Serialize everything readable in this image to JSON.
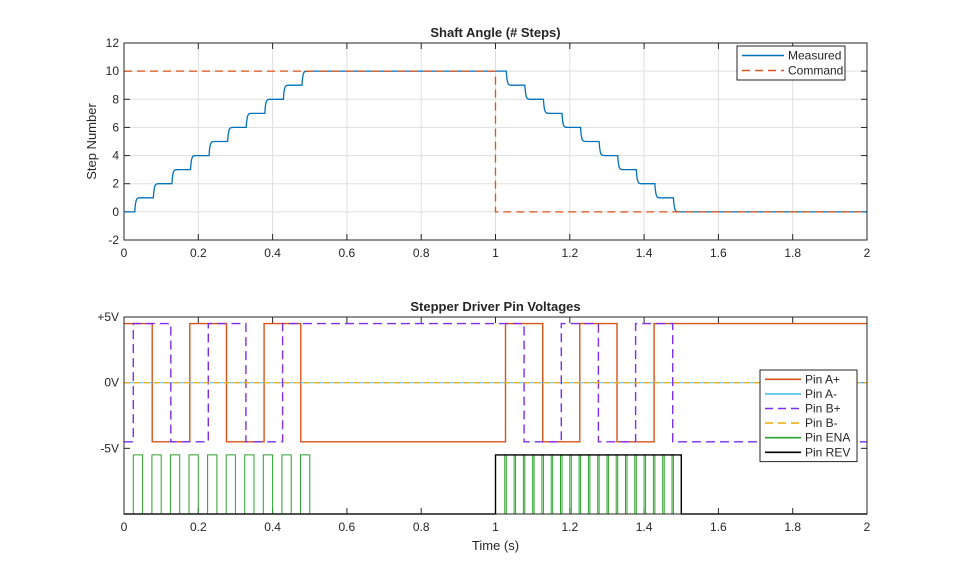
{
  "chart_data": [
    {
      "type": "line",
      "title": "Shaft Angle (# Steps)",
      "xlabel": "",
      "ylabel": "Step Number",
      "xlim": [
        0,
        2
      ],
      "ylim": [
        -2,
        12
      ],
      "xticks": [
        "0",
        "0.2",
        "0.4",
        "0.6",
        "0.8",
        "1",
        "1.2",
        "1.4",
        "1.6",
        "1.8",
        "2"
      ],
      "yticks": [
        "-2",
        "0",
        "2",
        "4",
        "6",
        "8",
        "10",
        "12"
      ],
      "grid": true,
      "legend_position": "top-right",
      "series": [
        {
          "name": "Measured",
          "color": "#0072BD",
          "style": "solid",
          "step_up_times": [
            0.03,
            0.08,
            0.13,
            0.18,
            0.23,
            0.28,
            0.33,
            0.38,
            0.43,
            0.48
          ],
          "step_down_times": [
            1.03,
            1.08,
            1.13,
            1.18,
            1.23,
            1.28,
            1.33,
            1.38,
            1.43,
            1.48
          ]
        },
        {
          "name": "Command",
          "color": "#D95319",
          "style": "dashed",
          "x": [
            0,
            1,
            1,
            2
          ],
          "y": [
            10,
            10,
            0,
            0
          ]
        }
      ]
    },
    {
      "type": "line",
      "title": "Stepper Driver Pin Voltages",
      "xlabel": "Time (s)",
      "ylabel": "",
      "xlim": [
        0,
        2
      ],
      "ylim": [
        -10,
        5
      ],
      "xticks": [
        "0",
        "0.2",
        "0.4",
        "0.6",
        "0.8",
        "1",
        "1.2",
        "1.4",
        "1.6",
        "1.8",
        "2"
      ],
      "ytick_values": [
        5,
        0,
        -5
      ],
      "yticks": [
        "+5V",
        "0V",
        "-5V"
      ],
      "grid": false,
      "legend_position": "right",
      "series": [
        {
          "name": "Pin A+",
          "color": "#D95319",
          "style": "solid",
          "high": 4.5,
          "low": -4.5,
          "initial": "high",
          "toggle_times": [
            0.076,
            0.177,
            0.276,
            0.377,
            0.476,
            1.027,
            1.127,
            1.227,
            1.327,
            1.427
          ]
        },
        {
          "name": "Pin A-",
          "color": "#4DBEEE",
          "style": "solid",
          "constant": 0
        },
        {
          "name": "Pin B+",
          "color": "#7E2FEE",
          "style": "dashed",
          "high": 4.5,
          "low": -4.5,
          "initial": "low",
          "toggle_times": [
            0.025,
            0.126,
            0.227,
            0.328,
            0.427,
            1.077,
            1.177,
            1.277,
            1.377,
            1.477
          ]
        },
        {
          "name": "Pin B-",
          "color": "#EDB120",
          "style": "dashed",
          "constant": 0
        },
        {
          "name": "Pin ENA",
          "color": "#2CA02C",
          "style": "solid",
          "high": -5.5,
          "low": -10,
          "pulses": [
            [
              0.025,
              0.05
            ],
            [
              0.075,
              0.1
            ],
            [
              0.125,
              0.15
            ],
            [
              0.175,
              0.2
            ],
            [
              0.225,
              0.25
            ],
            [
              0.275,
              0.3
            ],
            [
              0.325,
              0.35
            ],
            [
              0.375,
              0.4
            ],
            [
              0.425,
              0.45
            ],
            [
              0.475,
              0.5
            ],
            [
              1.025,
              1.029
            ],
            [
              1.05,
              1.054
            ],
            [
              1.075,
              1.079
            ],
            [
              1.1,
              1.104
            ],
            [
              1.125,
              1.129
            ],
            [
              1.15,
              1.154
            ],
            [
              1.175,
              1.179
            ],
            [
              1.2,
              1.204
            ],
            [
              1.225,
              1.229
            ],
            [
              1.25,
              1.254
            ],
            [
              1.275,
              1.279
            ],
            [
              1.3,
              1.304
            ],
            [
              1.325,
              1.329
            ],
            [
              1.35,
              1.354
            ],
            [
              1.375,
              1.379
            ],
            [
              1.4,
              1.404
            ],
            [
              1.425,
              1.429
            ],
            [
              1.45,
              1.454
            ],
            [
              1.475,
              1.479
            ]
          ]
        },
        {
          "name": "Pin REV",
          "color": "#000000",
          "style": "solid",
          "high": -5.5,
          "low": -10,
          "pulses": [
            [
              1.0,
              1.5
            ]
          ]
        }
      ]
    }
  ]
}
